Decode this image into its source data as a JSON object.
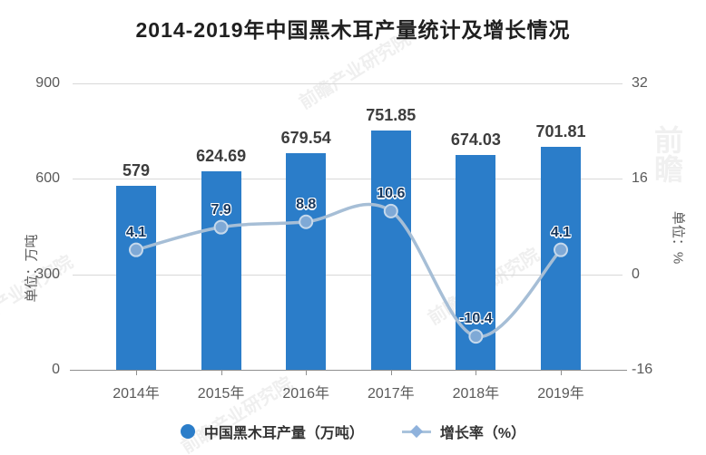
{
  "chart_data": {
    "type": "bar",
    "title": "2014-2019年中国黑木耳产量统计及增长情况",
    "categories": [
      "2014年",
      "2015年",
      "2016年",
      "2017年",
      "2018年",
      "2019年"
    ],
    "series": [
      {
        "name": "中国黑木耳产量（万吨）",
        "type": "bar",
        "axis": "left",
        "values": [
          579,
          624.69,
          679.54,
          751.85,
          674.03,
          701.81
        ],
        "color": "#2b7dc9"
      },
      {
        "name": "增长率（%）",
        "type": "line",
        "axis": "right",
        "values": [
          4.1,
          7.9,
          8.8,
          10.6,
          -10.4,
          4.1
        ],
        "color": "#a6bed6",
        "marker_color": "#7fa9d6"
      }
    ],
    "left_axis": {
      "name": "单位：万吨",
      "ticks": [
        0,
        300,
        600,
        900
      ],
      "min": 0,
      "max": 900
    },
    "right_axis": {
      "name": "单位：%",
      "ticks": [
        -16,
        0,
        16,
        32
      ],
      "min": -16,
      "max": 32
    },
    "legend": [
      {
        "label": "中国黑木耳产量（万吨）",
        "marker": "circle",
        "color": "#2b7dc9"
      },
      {
        "label": "增长率（%）",
        "marker": "line-diamond",
        "color": "#a9c3dc"
      }
    ],
    "grid": "horizontal",
    "legend_position": "bottom",
    "watermark": "前瞻产业研究院",
    "watermark_logo": "前瞻"
  }
}
